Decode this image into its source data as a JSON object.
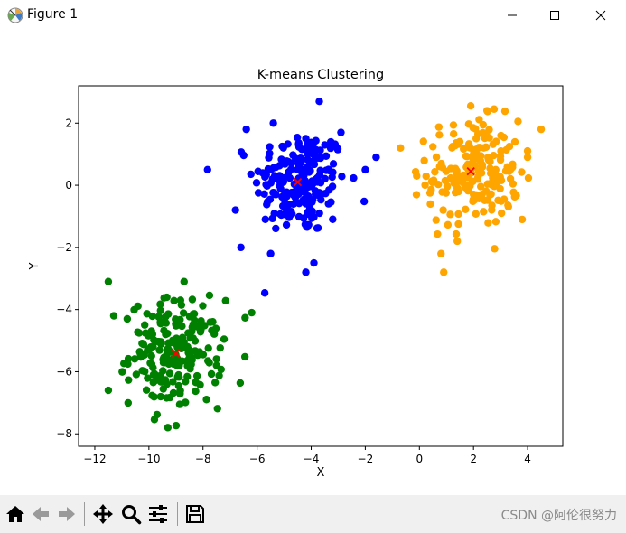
{
  "window": {
    "title": "Figure 1",
    "controls": [
      "minimize",
      "maximize",
      "close"
    ]
  },
  "toolbar": {
    "buttons": [
      "home-icon",
      "back-icon",
      "forward-icon",
      "pan-icon",
      "zoom-icon",
      "configure-subplots-icon",
      "save-icon"
    ],
    "watermark": "CSDN @阿伦很努力"
  },
  "chart_data": {
    "type": "scatter",
    "title": "K-means Clustering",
    "xlabel": "X",
    "ylabel": "Y",
    "xlim": [
      -12.6,
      5.3
    ],
    "ylim": [
      -8.4,
      3.2
    ],
    "xticks": [
      -12,
      -10,
      -8,
      -6,
      -4,
      -2,
      0,
      2,
      4
    ],
    "yticks": [
      -8,
      -6,
      -4,
      -2,
      0,
      2
    ],
    "grid": false,
    "clusters": [
      {
        "color": "#0000ff",
        "center": [
          -4.4,
          0.1
        ],
        "n": 200,
        "spread": 1.0,
        "centroid": [
          -4.5,
          0.1
        ],
        "extreme_points": [
          [
            -3.7,
            2.7
          ],
          [
            -5.4,
            2.0
          ],
          [
            -4.2,
            1.5
          ],
          [
            -6.4,
            1.8
          ],
          [
            -2.9,
            1.7
          ],
          [
            -2.0,
            0.5
          ],
          [
            -1.6,
            0.9
          ],
          [
            -6.6,
            -2.0
          ],
          [
            -4.2,
            -2.8
          ],
          [
            -3.9,
            -2.5
          ],
          [
            -5.5,
            -2.2
          ],
          [
            -6.8,
            -0.8
          ]
        ]
      },
      {
        "color": "#ffa500",
        "center": [
          2.0,
          0.4
        ],
        "n": 200,
        "spread": 1.0,
        "centroid": [
          1.9,
          0.45
        ],
        "extreme_points": [
          [
            4.5,
            1.8
          ],
          [
            2.5,
            2.4
          ],
          [
            -0.7,
            1.2
          ],
          [
            0.9,
            -2.8
          ],
          [
            1.4,
            -1.8
          ],
          [
            0.8,
            -2.2
          ],
          [
            3.8,
            -1.1
          ],
          [
            4.0,
            0.9
          ],
          [
            -0.1,
            0.3
          ]
        ]
      },
      {
        "color": "#008000",
        "center": [
          -9.0,
          -5.4
        ],
        "n": 200,
        "spread": 1.0,
        "centroid": [
          -9.0,
          -5.4
        ],
        "extreme_points": [
          [
            -11.5,
            -3.1
          ],
          [
            -11.5,
            -6.6
          ],
          [
            -8.7,
            -3.1
          ],
          [
            -6.2,
            -4.1
          ],
          [
            -9.3,
            -7.8
          ],
          [
            -7.5,
            -5.8
          ],
          [
            -11.3,
            -4.2
          ],
          [
            -10.8,
            -4.3
          ]
        ]
      }
    ]
  }
}
